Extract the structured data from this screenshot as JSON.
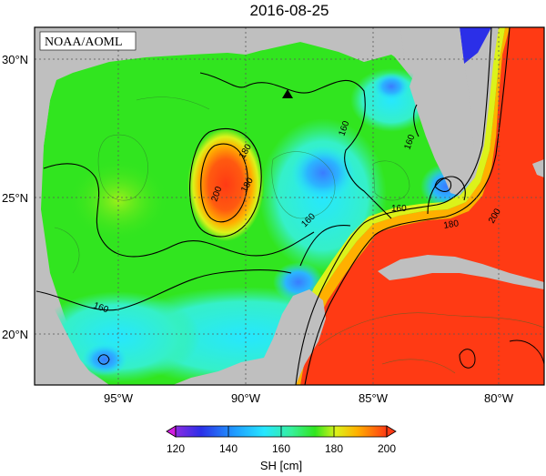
{
  "title": "2016-08-25",
  "credit": "NOAA/AOML",
  "map": {
    "lat_labels": [
      "30°N",
      "25°N",
      "20°N"
    ],
    "lon_labels": [
      "95°W",
      "90°W",
      "85°W",
      "80°W"
    ],
    "contour_labels": [
      "200",
      "180",
      "160",
      "160",
      "160",
      "160",
      "180",
      "160",
      "180",
      "200"
    ],
    "colors": {
      "land": "#bfbfbf",
      "frame": "#000000",
      "grid": "#5a5a5a"
    }
  },
  "colorbar": {
    "ticks": [
      "120",
      "140",
      "160",
      "180",
      "200"
    ],
    "label": "SH [cm]",
    "range": [
      120,
      200
    ],
    "colors": [
      "#d21fe0",
      "#2b2fe8",
      "#26b9ff",
      "#37f09a",
      "#31e51f",
      "#dcf21a",
      "#ffb000",
      "#ff3a14"
    ]
  }
}
